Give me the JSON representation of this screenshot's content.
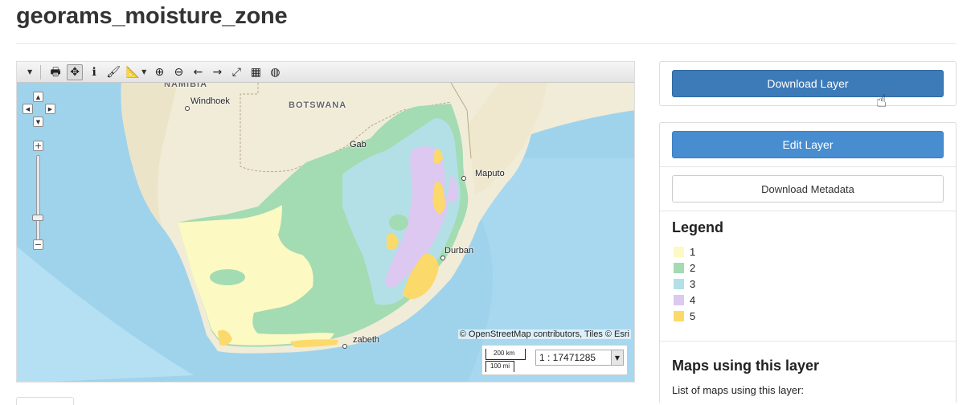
{
  "page": {
    "title": "georams_moisture_zone"
  },
  "map": {
    "toolbar": [
      {
        "name": "print-icon",
        "glyph": "🖶"
      },
      {
        "name": "pan-icon",
        "glyph": "✥"
      },
      {
        "name": "info-icon",
        "glyph": "ℹ"
      },
      {
        "name": "paint-icon",
        "glyph": "🖌"
      },
      {
        "name": "measure-icon",
        "glyph": "📐"
      },
      {
        "name": "zoom-in-icon",
        "glyph": "⊕"
      },
      {
        "name": "zoom-out-icon",
        "glyph": "⊖"
      },
      {
        "name": "back-icon",
        "glyph": "←"
      },
      {
        "name": "forward-icon",
        "glyph": "→"
      },
      {
        "name": "fullscreen-icon",
        "glyph": "⤢"
      },
      {
        "name": "calendar-icon",
        "glyph": "▦"
      },
      {
        "name": "globe-icon",
        "glyph": "◍"
      }
    ],
    "labels": {
      "namibia": "NAMIBIA",
      "botswana": "BOTSWANA",
      "windhoek": "Windhoek",
      "gaborone": "Gab",
      "maputo": "Maputo",
      "durban": "Durban",
      "elizabeth": "zabeth"
    },
    "attribution": "© OpenStreetMap contributors, Tiles © Esri",
    "scale": {
      "km": "200 km",
      "mi": "100 mi",
      "ratio": "1 : 17471285"
    },
    "zoom_plus": "+",
    "zoom_minus": "−"
  },
  "actions": {
    "download_layer": "Download Layer",
    "edit_layer": "Edit Layer",
    "download_metadata": "Download Metadata"
  },
  "legend": {
    "title": "Legend",
    "items": [
      {
        "label": "1",
        "color": "#fcf9c2"
      },
      {
        "label": "2",
        "color": "#a3dbb3"
      },
      {
        "label": "3",
        "color": "#b3e0e6"
      },
      {
        "label": "4",
        "color": "#dcc8f0"
      },
      {
        "label": "5",
        "color": "#fcd96b"
      }
    ]
  },
  "maps_using": {
    "title": "Maps using this layer",
    "description": "List of maps using this layer:"
  }
}
